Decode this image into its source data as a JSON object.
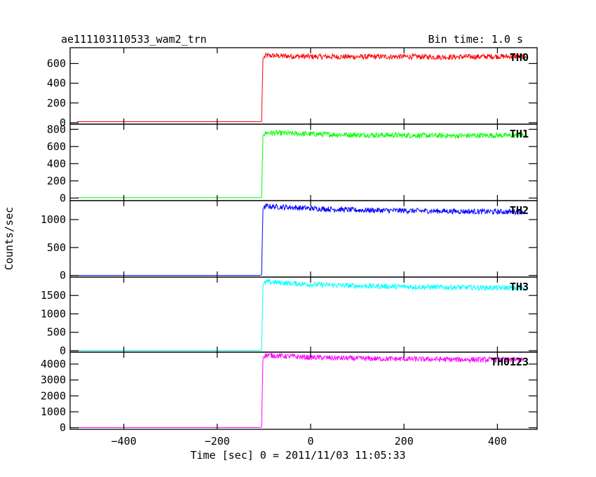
{
  "chart_data": {
    "type": "line",
    "title": "ae111103110533_wam2_trn",
    "subtitle": "Bin time: 1.0 s",
    "xlabel": "Time [sec] 0 = 2011/11/03 11:05:33",
    "ylabel": "Counts/sec",
    "xlim": [
      -515,
      485
    ],
    "x_ticks": [
      -400,
      -200,
      0,
      200,
      400
    ],
    "x_tick_labels": [
      "−400",
      "−200",
      "0",
      "200",
      "400"
    ],
    "grid": false,
    "panels": [
      {
        "name": "TH0",
        "color": "#ff0000",
        "ylim": [
          -15,
          760
        ],
        "y_ticks": [
          0,
          200,
          400,
          600
        ],
        "y_tick_labels": [
          "0",
          "200",
          "400",
          "600"
        ],
        "x": [
          -500,
          -110,
          -105,
          -102,
          -95,
          0,
          100,
          200,
          300,
          400,
          460
        ],
        "y": [
          10,
          10,
          12,
          655,
          680,
          670,
          668,
          670,
          665,
          672,
          670
        ]
      },
      {
        "name": "TH1",
        "color": "#00ff00",
        "ylim": [
          -30,
          860
        ],
        "y_ticks": [
          0,
          200,
          400,
          600,
          800
        ],
        "y_tick_labels": [
          "0",
          "200",
          "400",
          "600",
          "800"
        ],
        "x": [
          -500,
          -110,
          -105,
          -102,
          -95,
          0,
          100,
          200,
          300,
          400,
          460
        ],
        "y": [
          5,
          5,
          10,
          730,
          760,
          745,
          735,
          730,
          725,
          730,
          725
        ]
      },
      {
        "name": "TH2",
        "color": "#0000ff",
        "ylim": [
          -30,
          1340
        ],
        "y_ticks": [
          0,
          500,
          1000
        ],
        "y_tick_labels": [
          "0",
          "500",
          "1000"
        ],
        "x": [
          -500,
          -110,
          -105,
          -102,
          -95,
          0,
          100,
          200,
          300,
          400,
          460
        ],
        "y": [
          0,
          0,
          10,
          1200,
          1240,
          1200,
          1170,
          1160,
          1150,
          1140,
          1140
        ]
      },
      {
        "name": "TH3",
        "color": "#00ffff",
        "ylim": [
          -40,
          2000
        ],
        "y_ticks": [
          0,
          500,
          1000,
          1500
        ],
        "y_tick_labels": [
          "0",
          "500",
          "1000",
          "1500"
        ],
        "x": [
          -500,
          -110,
          -105,
          -102,
          -95,
          0,
          100,
          200,
          300,
          400,
          460
        ],
        "y": [
          5,
          5,
          20,
          1800,
          1870,
          1800,
          1760,
          1740,
          1720,
          1710,
          1700
        ]
      },
      {
        "name": "TH0123",
        "color": "#ff00ff",
        "ylim": [
          -100,
          4750
        ],
        "y_ticks": [
          0,
          1000,
          2000,
          3000,
          4000
        ],
        "y_tick_labels": [
          "0",
          "1000",
          "2000",
          "3000",
          "4000"
        ],
        "x": [
          -500,
          -110,
          -105,
          -102,
          -95,
          0,
          100,
          200,
          300,
          400,
          460
        ],
        "y": [
          15,
          15,
          40,
          4430,
          4560,
          4420,
          4350,
          4320,
          4290,
          4270,
          4260
        ]
      }
    ]
  }
}
